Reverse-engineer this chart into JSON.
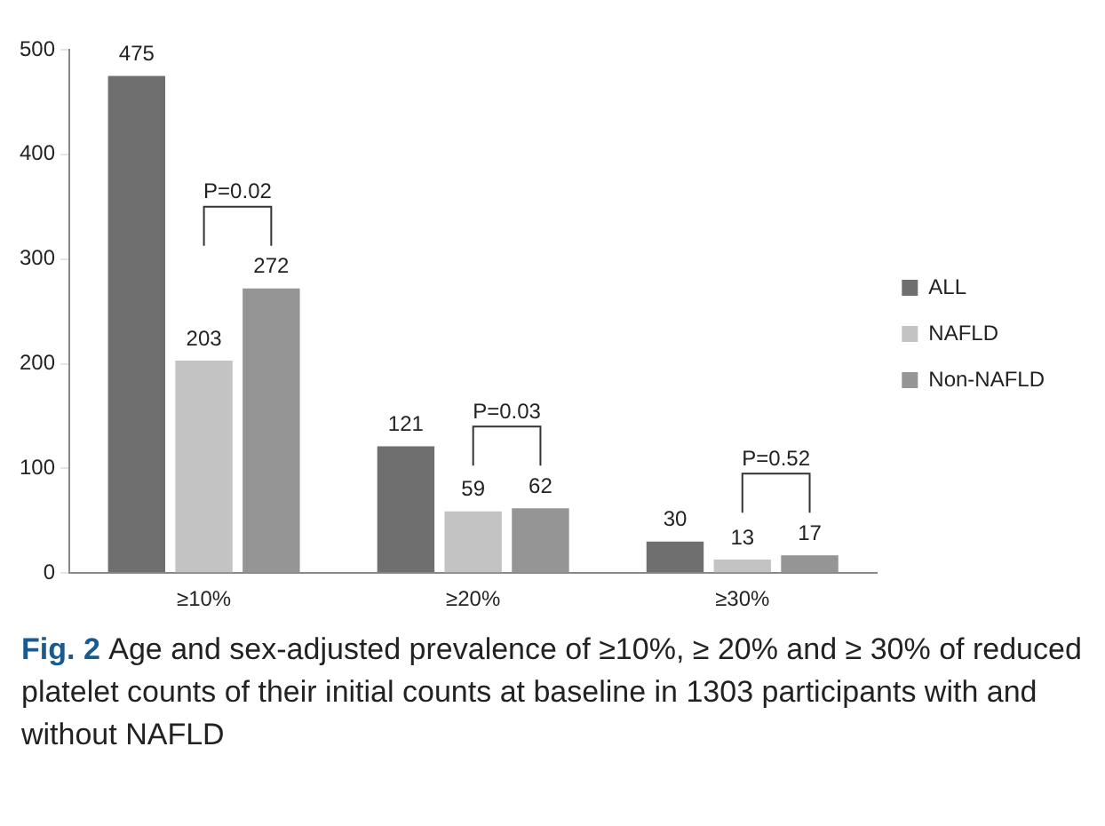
{
  "chart_data": {
    "type": "bar",
    "categories": [
      "≥10%",
      "≥20%",
      "≥30%"
    ],
    "series": [
      {
        "name": "ALL",
        "color": "#6f6f6f",
        "values": [
          475,
          121,
          30
        ]
      },
      {
        "name": "NAFLD",
        "color": "#c3c3c3",
        "values": [
          203,
          59,
          13
        ]
      },
      {
        "name": "Non-NAFLD",
        "color": "#959595",
        "values": [
          272,
          62,
          17
        ]
      }
    ],
    "ylim": [
      0,
      500
    ],
    "yticks": [
      0,
      100,
      200,
      300,
      400,
      500
    ],
    "grid": false,
    "legend": "right",
    "data_labels": true,
    "annotations": [
      "P=0.02",
      "P=0.03",
      "P=0.52",
      "Fig. 2",
      "Age and sex-adjusted prevalence of ≥10%, ≥ 20% and ≥ 30% of reduced platelet counts of their initial counts at baseline in 1303 participants with and without NAFLD"
    ]
  }
}
